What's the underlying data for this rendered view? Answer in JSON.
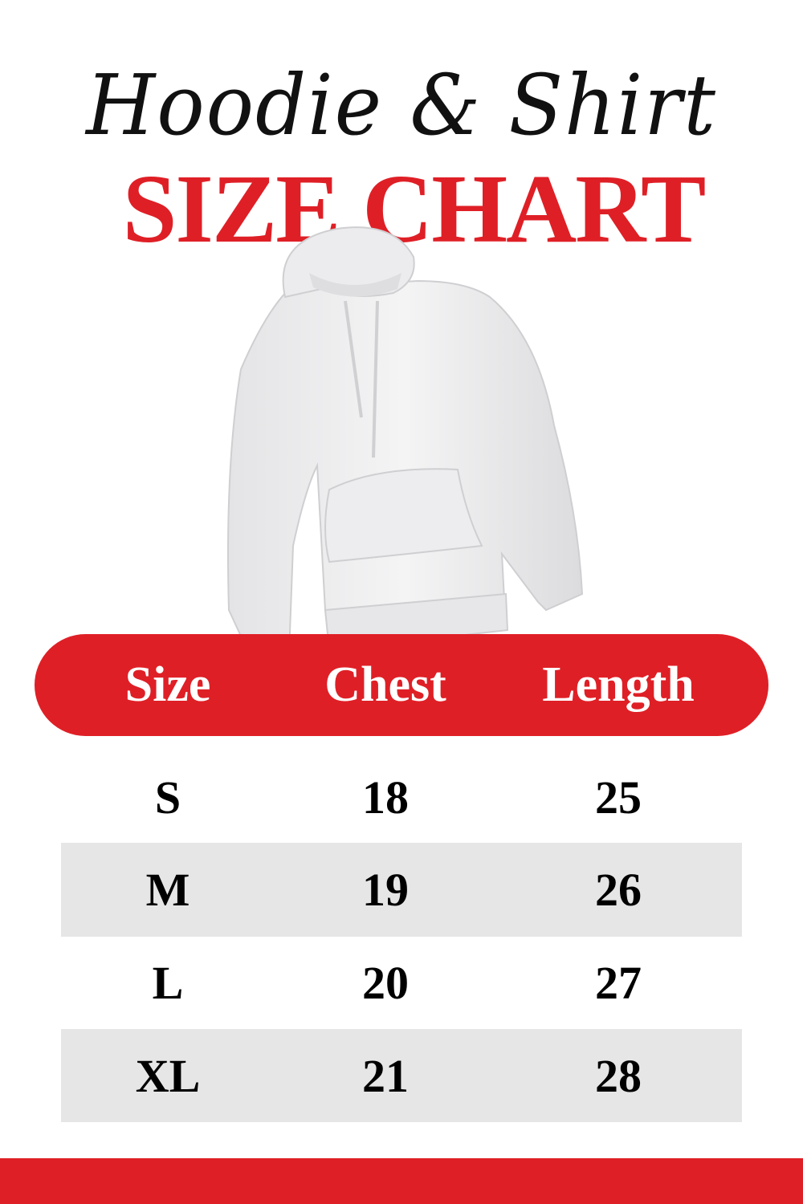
{
  "title": {
    "script": "Hoodie & Shirt",
    "main": "SIZE CHART"
  },
  "image": {
    "icon": "hoodie-icon"
  },
  "colors": {
    "accent": "#df1f26",
    "row_alt": "#e6e6e6"
  },
  "table": {
    "headers": [
      "Size",
      "Chest",
      "Length"
    ],
    "rows": [
      [
        "S",
        "18",
        "25"
      ],
      [
        "M",
        "19",
        "26"
      ],
      [
        "L",
        "20",
        "27"
      ],
      [
        "XL",
        "21",
        "28"
      ]
    ]
  }
}
